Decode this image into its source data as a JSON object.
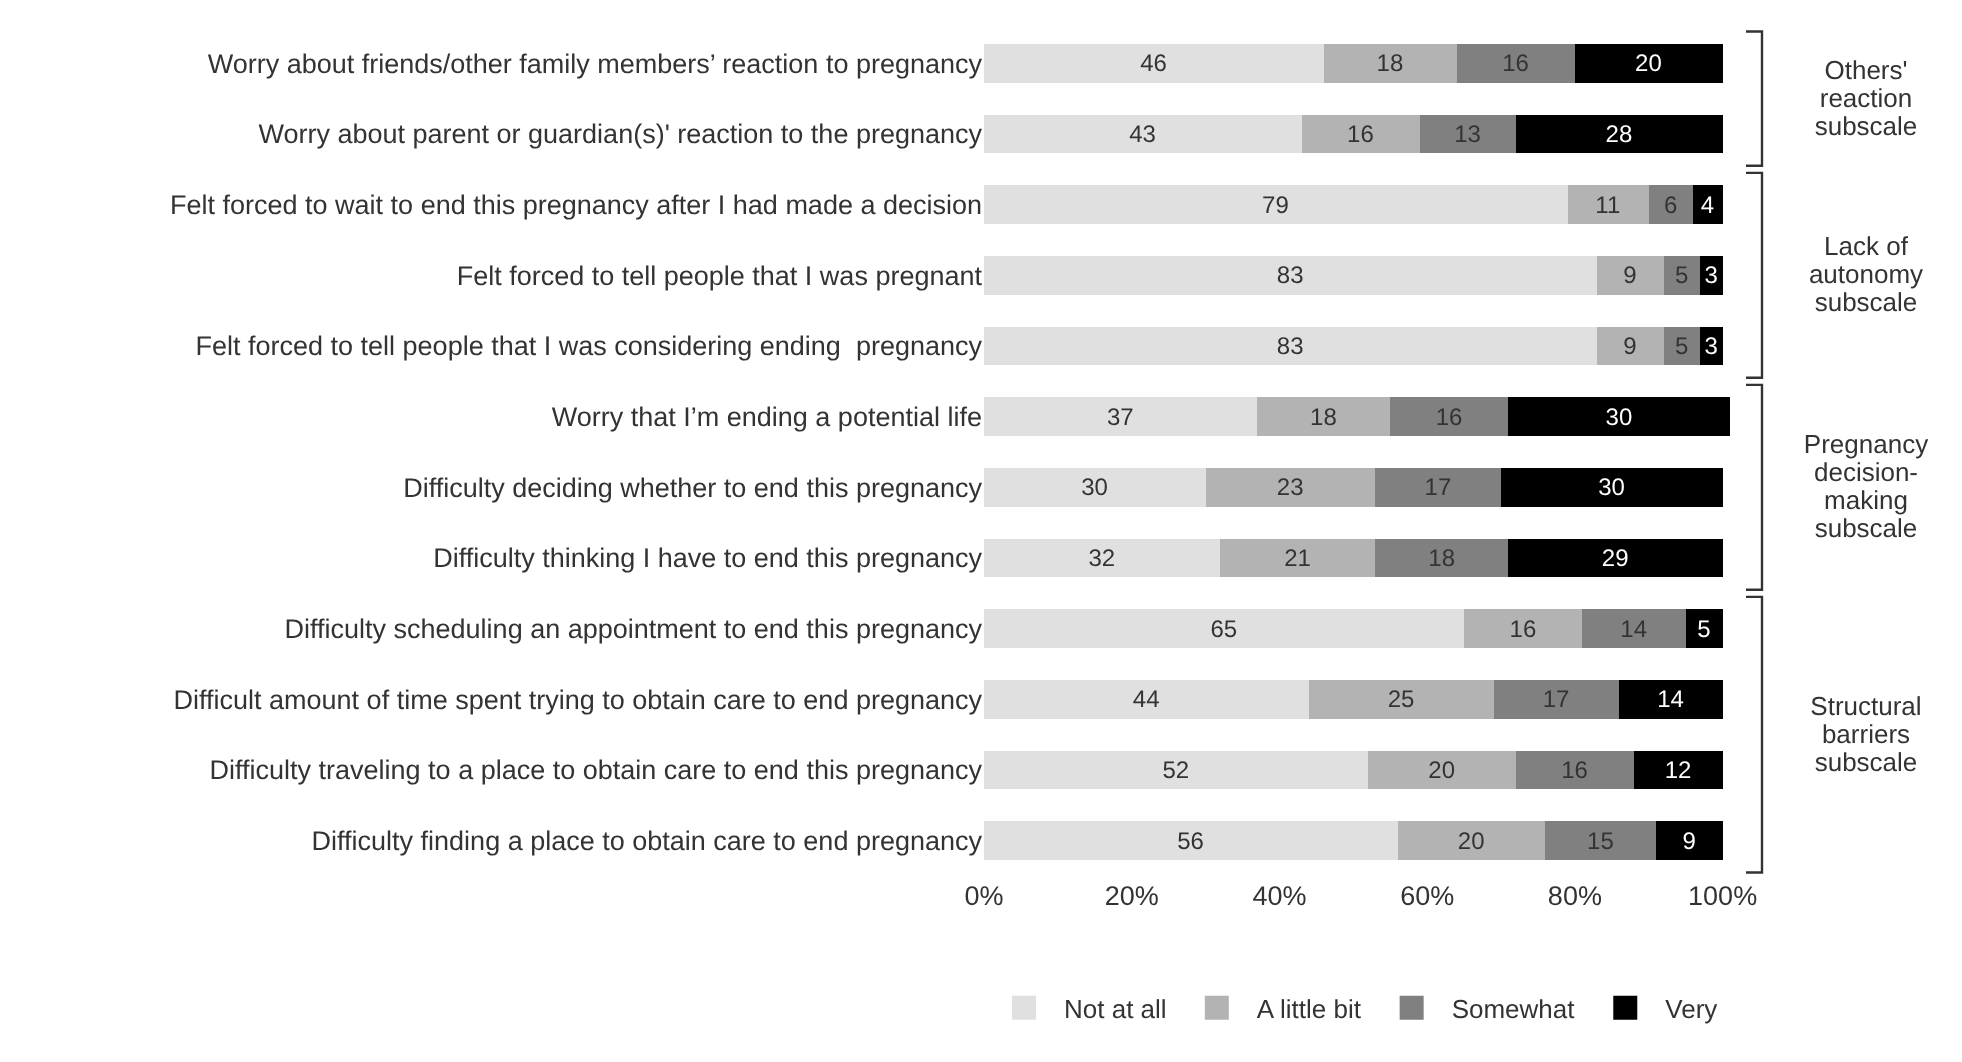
{
  "chart_data": {
    "type": "bar",
    "orientation": "horizontal",
    "stacked": true,
    "data_labels": true,
    "legend": "bottom",
    "grid": false,
    "categories": [
      "Worry about friends/other family members’ reaction to pregnancy",
      "Worry about parent or guardian(s)' reaction to the pregnancy",
      "Felt forced to wait to end this pregnancy after I had made a decision",
      "Felt forced to tell people that I was pregnant",
      "Felt forced to tell people that I was considering ending  pregnancy",
      "Worry that I’m ending a potential life",
      "Difficulty deciding whether to end this pregnancy",
      "Difficulty thinking I have to end this pregnancy",
      "Difficulty scheduling an appointment to end this pregnancy",
      "Difficult amount of time spent trying to obtain care to end pregnancy",
      "Difficulty traveling to a place to obtain care to end this pregnancy",
      "Difficulty finding a place to obtain care to end pregnancy"
    ],
    "series": [
      {
        "name": "Not at all",
        "color": "#e0e0e0",
        "values": [
          46,
          43,
          79,
          83,
          83,
          37,
          30,
          32,
          65,
          44,
          52,
          56
        ]
      },
      {
        "name": "A little bit",
        "color": "#b3b3b3",
        "values": [
          18,
          16,
          11,
          9,
          9,
          18,
          23,
          21,
          16,
          25,
          20,
          20
        ]
      },
      {
        "name": "Somewhat",
        "color": "#808080",
        "values": [
          16,
          13,
          6,
          5,
          5,
          16,
          17,
          18,
          14,
          17,
          16,
          15
        ]
      },
      {
        "name": "Very",
        "color": "#000000",
        "values": [
          20,
          28,
          4,
          3,
          3,
          30,
          30,
          29,
          5,
          14,
          12,
          9
        ]
      }
    ],
    "xlim": [
      0,
      101
    ],
    "xticks": [
      {
        "value": 0,
        "label": "0%"
      },
      {
        "value": 20,
        "label": "20%"
      },
      {
        "value": 40,
        "label": "40%"
      },
      {
        "value": 60,
        "label": "60%"
      },
      {
        "value": 80,
        "label": "80%"
      },
      {
        "value": 100,
        "label": "100%"
      }
    ],
    "annotations": [
      "Others'\nreaction\nsubscale",
      "Lack of\nautonomy\nsubscale",
      "Pregnancy\ndecision-\nmaking\nsubscale",
      "Structural\nbarriers\nsubscale"
    ]
  }
}
